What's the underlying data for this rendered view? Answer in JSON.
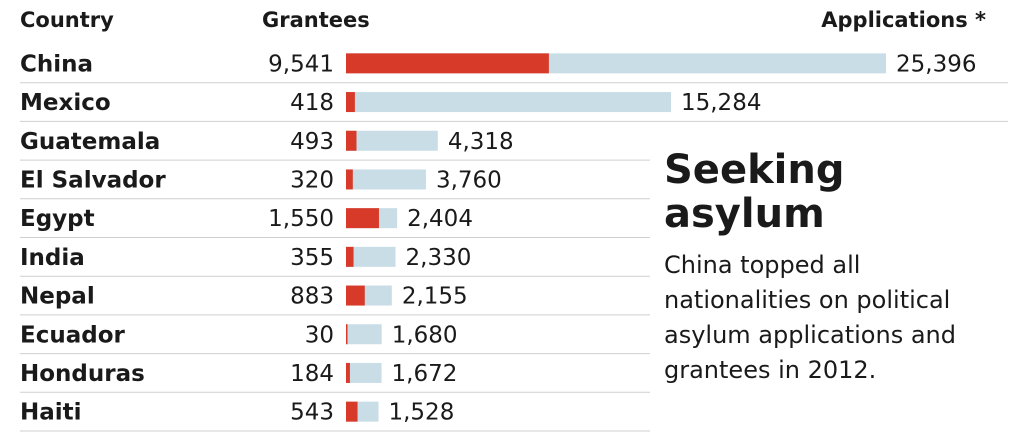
{
  "headers": {
    "country": "Country",
    "grantees": "Grantees",
    "applications": "Applications *"
  },
  "callout": {
    "title": "Seeking asylum",
    "description": "China topped all nationalities on political asylum applications and grantees in 2012."
  },
  "colors": {
    "grantees": "#d83a2a",
    "applications": "#c9dde6",
    "row_divider": "#cfcfcf"
  },
  "chart_data": {
    "type": "bar",
    "orientation": "horizontal",
    "categories": [
      "China",
      "Mexico",
      "Guatemala",
      "El Salvador",
      "Egypt",
      "India",
      "Nepal",
      "Ecuador",
      "Honduras",
      "Haiti"
    ],
    "series": [
      {
        "name": "Grantees",
        "values": [
          9541,
          418,
          493,
          320,
          1550,
          355,
          883,
          30,
          184,
          543
        ]
      },
      {
        "name": "Applications *",
        "values": [
          25396,
          15284,
          4318,
          3760,
          2404,
          2330,
          2155,
          1680,
          1672,
          1528
        ]
      }
    ],
    "grantee_labels": [
      "9,541",
      "418",
      "493",
      "320",
      "1,550",
      "355",
      "883",
      "30",
      "184",
      "543"
    ],
    "application_labels": [
      "25,396",
      "15,284",
      "4,318",
      "3,760",
      "2,404",
      "2,330",
      "2,155",
      "1,680",
      "1,672",
      "1,528"
    ],
    "xlim": [
      0,
      25396
    ]
  }
}
